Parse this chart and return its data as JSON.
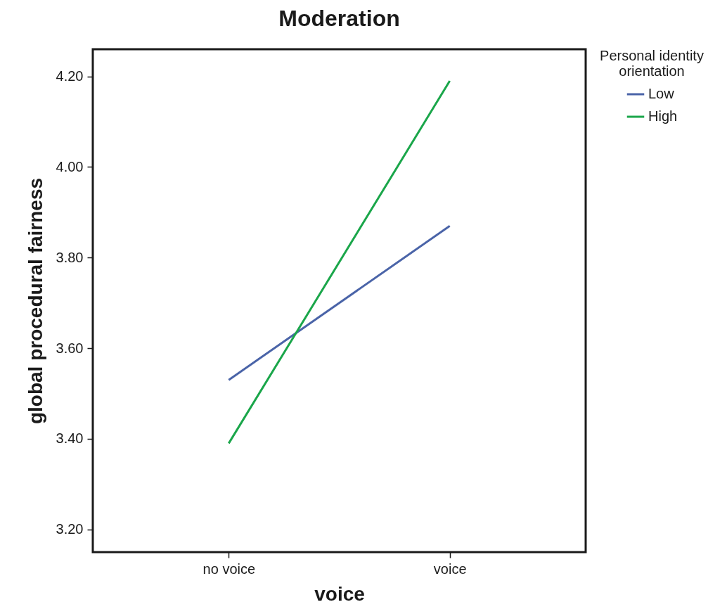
{
  "chart_data": {
    "type": "line",
    "title": "Moderation",
    "xlabel": "voice",
    "ylabel": "global procedural fairness",
    "legend_title": "Personal identity orientation",
    "legend": "right",
    "grid": false,
    "marker": "none",
    "line_style": "solid",
    "categories": [
      "no voice",
      "voice"
    ],
    "ylim": [
      3.15,
      4.26
    ],
    "yticks": [
      {
        "value": 3.2,
        "label": "3.20"
      },
      {
        "value": 3.4,
        "label": "3.40"
      },
      {
        "value": 3.6,
        "label": "3.60"
      },
      {
        "value": 3.8,
        "label": "3.80"
      },
      {
        "value": 4.0,
        "label": "4.00"
      },
      {
        "value": 4.2,
        "label": "4.20"
      }
    ],
    "series": [
      {
        "name": "Low",
        "color": "#4a64a8",
        "values": [
          3.53,
          3.87
        ]
      },
      {
        "name": "High",
        "color": "#1aa64a",
        "values": [
          3.39,
          4.19
        ]
      }
    ]
  }
}
